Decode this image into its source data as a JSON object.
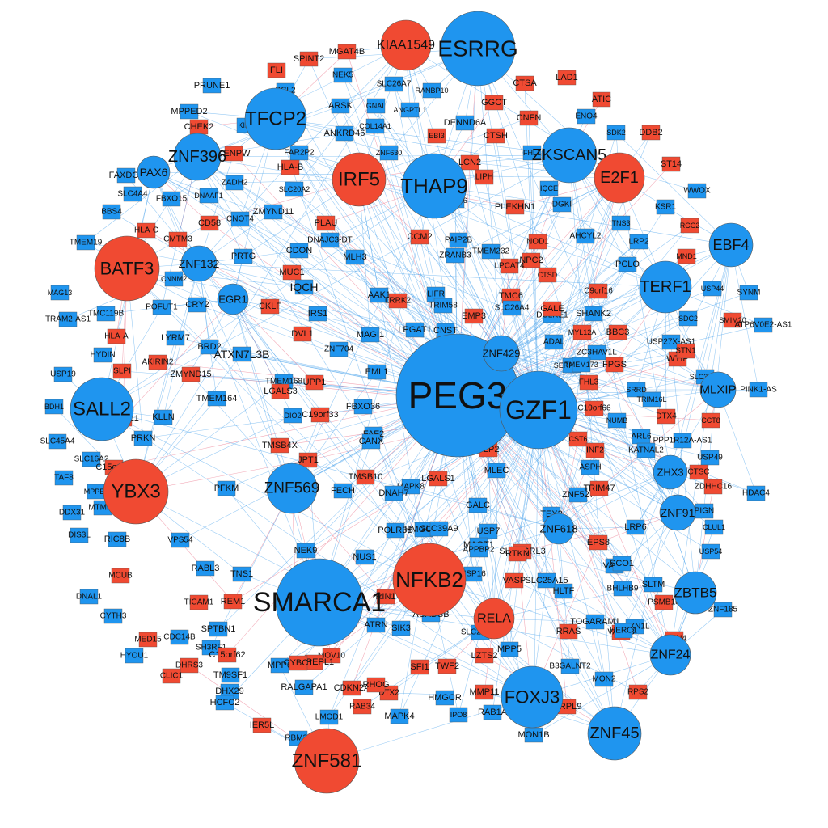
{
  "colors": {
    "tf_blue": "#1f95ef",
    "tf_red": "#f04a32",
    "edge_blue": "#3a9bea",
    "edge_red": "#e8607a",
    "node_stroke": "#555555",
    "arrow": "#8a6fb0"
  },
  "hubs": [
    {
      "label": "PEG3",
      "color": "blue"
    },
    {
      "label": "GZF1",
      "color": "blue"
    },
    {
      "label": "SMARCA1",
      "color": "blue"
    },
    {
      "label": "NFKB2",
      "color": "red"
    },
    {
      "label": "ESRRG",
      "color": "blue"
    },
    {
      "label": "THAP9",
      "color": "blue"
    },
    {
      "label": "IRF5",
      "color": "red"
    },
    {
      "label": "TFCP2",
      "color": "blue"
    },
    {
      "label": "ZNF396",
      "color": "blue"
    },
    {
      "label": "ZKSCAN5",
      "color": "blue"
    },
    {
      "label": "E2F1",
      "color": "red"
    },
    {
      "label": "BATF3",
      "color": "red"
    },
    {
      "label": "SALL2",
      "color": "blue"
    },
    {
      "label": "YBX3",
      "color": "red"
    },
    {
      "label": "ZNF581",
      "color": "red"
    },
    {
      "label": "FOXJ3",
      "color": "blue"
    },
    {
      "label": "ZNF45",
      "color": "blue"
    },
    {
      "label": "ZNF569",
      "color": "blue"
    },
    {
      "label": "TERF1",
      "color": "blue"
    },
    {
      "label": "EBF4",
      "color": "blue"
    },
    {
      "label": "MLXIP",
      "color": "blue"
    },
    {
      "label": "ZBTB5",
      "color": "blue"
    },
    {
      "label": "ZNF24",
      "color": "blue"
    },
    {
      "label": "ZNF91",
      "color": "blue"
    },
    {
      "label": "ZHX3",
      "color": "blue"
    },
    {
      "label": "RELA",
      "color": "red"
    },
    {
      "label": "KIAA1549",
      "color": "red"
    },
    {
      "label": "ZNF132",
      "color": "blue"
    },
    {
      "label": "PAX6",
      "color": "blue"
    },
    {
      "label": "EGR1",
      "color": "blue"
    },
    {
      "label": "ZNF618",
      "color": "blue"
    },
    {
      "label": "ZNF429",
      "color": "blue"
    }
  ],
  "genes": [
    {
      "label": "SPINT2",
      "color": "red"
    },
    {
      "label": "MGAT4B",
      "color": "red"
    },
    {
      "label": "FLI",
      "color": "red"
    },
    {
      "label": "TMEM135",
      "color": "blue"
    },
    {
      "label": "NEK5",
      "color": "blue"
    },
    {
      "label": "SLC26A7",
      "color": "blue"
    },
    {
      "label": "CTSA",
      "color": "red"
    },
    {
      "label": "LAD1",
      "color": "red"
    },
    {
      "label": "PRUNE1",
      "color": "blue"
    },
    {
      "label": "BCL2",
      "color": "blue"
    },
    {
      "label": "RANBP10",
      "color": "blue"
    },
    {
      "label": "GGCT",
      "color": "red"
    },
    {
      "label": "ATIC",
      "color": "red"
    },
    {
      "label": "MPPED2",
      "color": "blue"
    },
    {
      "label": "ARSK",
      "color": "blue"
    },
    {
      "label": "GNAL",
      "color": "blue"
    },
    {
      "label": "ANGPTL1",
      "color": "blue"
    },
    {
      "label": "CNFN",
      "color": "red"
    },
    {
      "label": "ENO4",
      "color": "blue"
    },
    {
      "label": "CHEK2",
      "color": "red"
    },
    {
      "label": "KIF6",
      "color": "blue"
    },
    {
      "label": "COL14A1",
      "color": "blue"
    },
    {
      "label": "DENND6A",
      "color": "blue"
    },
    {
      "label": "SDK2",
      "color": "blue"
    },
    {
      "label": "DDB2",
      "color": "red"
    },
    {
      "label": "ANKRD46",
      "color": "blue"
    },
    {
      "label": "EBI3",
      "color": "red"
    },
    {
      "label": "CTSH",
      "color": "red"
    },
    {
      "label": "FAR2P2",
      "color": "blue"
    },
    {
      "label": "ZNF630",
      "color": "blue"
    },
    {
      "label": "FHL1",
      "color": "blue"
    },
    {
      "label": "CENPW",
      "color": "red"
    },
    {
      "label": "HLA-B",
      "color": "red"
    },
    {
      "label": "LCN2",
      "color": "red"
    },
    {
      "label": "ST14",
      "color": "red"
    },
    {
      "label": "FAXDC2",
      "color": "blue"
    },
    {
      "label": "ZADH2",
      "color": "blue"
    },
    {
      "label": "LIPH",
      "color": "red"
    },
    {
      "label": "IQCE",
      "color": "blue"
    },
    {
      "label": "SLC4A4",
      "color": "blue"
    },
    {
      "label": "FBXO15",
      "color": "blue"
    },
    {
      "label": "DNAAF1",
      "color": "blue"
    },
    {
      "label": "SLC20A2",
      "color": "blue"
    },
    {
      "label": "LRRC6",
      "color": "blue"
    },
    {
      "label": "WWOX",
      "color": "blue"
    },
    {
      "label": "BBS4",
      "color": "blue"
    },
    {
      "label": "CD58",
      "color": "red"
    },
    {
      "label": "CNOT4",
      "color": "blue"
    },
    {
      "label": "ZMYND11",
      "color": "blue"
    },
    {
      "label": "PLAU",
      "color": "red"
    },
    {
      "label": "DGKI",
      "color": "blue"
    },
    {
      "label": "PLEKHN1",
      "color": "red"
    },
    {
      "label": "KSR1",
      "color": "blue"
    },
    {
      "label": "HLA-C",
      "color": "red"
    },
    {
      "label": "DNAJC3-DT",
      "color": "blue"
    },
    {
      "label": "PAIP2B",
      "color": "blue"
    },
    {
      "label": "NOD1",
      "color": "red"
    },
    {
      "label": "TNS3",
      "color": "blue"
    },
    {
      "label": "RCC2",
      "color": "red"
    },
    {
      "label": "TMEM19",
      "color": "blue"
    },
    {
      "label": "CMTM3",
      "color": "red"
    },
    {
      "label": "CCM2",
      "color": "red"
    },
    {
      "label": "TMEM232",
      "color": "blue"
    },
    {
      "label": "AHCYL2",
      "color": "blue"
    },
    {
      "label": "LRP2",
      "color": "blue"
    },
    {
      "label": "PRTG",
      "color": "blue"
    },
    {
      "label": "CDON",
      "color": "blue"
    },
    {
      "label": "MLH3",
      "color": "blue"
    },
    {
      "label": "ZRANB3",
      "color": "blue"
    },
    {
      "label": "NPC2",
      "color": "red"
    },
    {
      "label": "MND1",
      "color": "red"
    },
    {
      "label": "MUC1",
      "color": "red"
    },
    {
      "label": "LPCAT4",
      "color": "red"
    },
    {
      "label": "CTSD",
      "color": "red"
    },
    {
      "label": "PCLO",
      "color": "blue"
    },
    {
      "label": "MAG13",
      "color": "blue"
    },
    {
      "label": "CNNM2",
      "color": "blue"
    },
    {
      "label": "IQCH",
      "color": "blue"
    },
    {
      "label": "AAK1",
      "color": "blue"
    },
    {
      "label": "LIFR",
      "color": "blue"
    },
    {
      "label": "TMC6",
      "color": "red"
    },
    {
      "label": "C9orf16",
      "color": "red"
    },
    {
      "label": "USP44",
      "color": "blue"
    },
    {
      "label": "SYNM",
      "color": "blue"
    },
    {
      "label": "TRAM2-AS1",
      "color": "blue"
    },
    {
      "label": "POFUT1",
      "color": "blue"
    },
    {
      "label": "CRY2",
      "color": "blue"
    },
    {
      "label": "CKLF",
      "color": "red"
    },
    {
      "label": "LRRK2",
      "color": "red"
    },
    {
      "label": "SLC26A4",
      "color": "blue"
    },
    {
      "label": "SHANK2",
      "color": "blue"
    },
    {
      "label": "TMC119B",
      "color": "blue"
    },
    {
      "label": "IRS1",
      "color": "blue"
    },
    {
      "label": "TRIM58",
      "color": "blue"
    },
    {
      "label": "EMP3",
      "color": "red"
    },
    {
      "label": "DCLRE1",
      "color": "blue"
    },
    {
      "label": "GALE",
      "color": "red"
    },
    {
      "label": "SDC2",
      "color": "blue"
    },
    {
      "label": "SMIM20",
      "color": "red"
    },
    {
      "label": "LYRM7",
      "color": "blue"
    },
    {
      "label": "DVL1",
      "color": "red"
    },
    {
      "label": "MAGI1",
      "color": "blue"
    },
    {
      "label": "LPGAT1",
      "color": "blue"
    },
    {
      "label": "CNST",
      "color": "blue"
    },
    {
      "label": "ADAL",
      "color": "blue"
    },
    {
      "label": "MYL12A",
      "color": "red"
    },
    {
      "label": "BBC3",
      "color": "red"
    },
    {
      "label": "ATP6V0E2-AS1",
      "color": "blue"
    },
    {
      "label": "HLA-A",
      "color": "red"
    },
    {
      "label": "HYDIN",
      "color": "blue"
    },
    {
      "label": "BRD2",
      "color": "blue"
    },
    {
      "label": "ATXN7L3B",
      "color": "blue"
    },
    {
      "label": "ZNF704",
      "color": "blue"
    },
    {
      "label": "PARP12",
      "color": "red"
    },
    {
      "label": "ZC3HAV1L",
      "color": "blue"
    },
    {
      "label": "USP27X-AS1",
      "color": "blue"
    },
    {
      "label": "AKIRIN2",
      "color": "red"
    },
    {
      "label": "SLPI",
      "color": "red"
    },
    {
      "label": "ZMYND15",
      "color": "red"
    },
    {
      "label": "EML1",
      "color": "blue"
    },
    {
      "label": "SERPINA1",
      "color": "blue"
    },
    {
      "label": "FPGS",
      "color": "red"
    },
    {
      "label": "WTIP",
      "color": "red"
    },
    {
      "label": "USP19",
      "color": "blue"
    },
    {
      "label": "TMEM168",
      "color": "blue"
    },
    {
      "label": "UPP1",
      "color": "red"
    },
    {
      "label": "TMEM173",
      "color": "blue"
    },
    {
      "label": "STN1",
      "color": "red"
    },
    {
      "label": "SLC33A1",
      "color": "blue"
    },
    {
      "label": "BCL2L1",
      "color": "red"
    },
    {
      "label": "TMEM164",
      "color": "blue"
    },
    {
      "label": "LGALS3",
      "color": "red"
    },
    {
      "label": "FBXO36",
      "color": "blue"
    },
    {
      "label": "FHL3",
      "color": "red"
    },
    {
      "label": "SRRD",
      "color": "blue"
    },
    {
      "label": "PINK1-AS",
      "color": "blue"
    },
    {
      "label": "BDH1",
      "color": "blue"
    },
    {
      "label": "C19orf33",
      "color": "red"
    },
    {
      "label": "DIO2",
      "color": "blue"
    },
    {
      "label": "C19orf66",
      "color": "red"
    },
    {
      "label": "TRIM16L",
      "color": "blue"
    },
    {
      "label": "KLLN",
      "color": "blue"
    },
    {
      "label": "DTX4",
      "color": "red"
    },
    {
      "label": "NUMB",
      "color": "blue"
    },
    {
      "label": "CCT8",
      "color": "red"
    },
    {
      "label": "SLC45A4",
      "color": "blue"
    },
    {
      "label": "PRKN",
      "color": "blue"
    },
    {
      "label": "FAF2",
      "color": "blue"
    },
    {
      "label": "CANX",
      "color": "blue"
    },
    {
      "label": "CST6",
      "color": "red"
    },
    {
      "label": "ARL6",
      "color": "blue"
    },
    {
      "label": "KATNAL2",
      "color": "blue"
    },
    {
      "label": "PPP1R12A-AS1",
      "color": "blue"
    },
    {
      "label": "SLC16A2",
      "color": "blue"
    },
    {
      "label": "TMSB4X",
      "color": "red"
    },
    {
      "label": "JPT1",
      "color": "red"
    },
    {
      "label": "PLP2",
      "color": "red"
    },
    {
      "label": "INF2",
      "color": "red"
    },
    {
      "label": "ASPH",
      "color": "blue"
    },
    {
      "label": "USP49",
      "color": "blue"
    },
    {
      "label": "C15orf48",
      "color": "red"
    },
    {
      "label": "TMSB10",
      "color": "red"
    },
    {
      "label": "MAPK8",
      "color": "blue"
    },
    {
      "label": "MLEC",
      "color": "blue"
    },
    {
      "label": "CTSC",
      "color": "red"
    },
    {
      "label": "ZDHHC16",
      "color": "red"
    },
    {
      "label": "TAF8",
      "color": "blue"
    },
    {
      "label": "PFKM",
      "color": "blue"
    },
    {
      "label": "LGALS1",
      "color": "red"
    },
    {
      "label": "ZNF527",
      "color": "blue"
    },
    {
      "label": "TRIM47",
      "color": "red"
    },
    {
      "label": "HDAC4",
      "color": "blue"
    },
    {
      "label": "MPPE1",
      "color": "blue"
    },
    {
      "label": "MTMR4",
      "color": "blue"
    },
    {
      "label": "FECH",
      "color": "blue"
    },
    {
      "label": "DNAH7",
      "color": "blue"
    },
    {
      "label": "GALC",
      "color": "blue"
    },
    {
      "label": "TEX2",
      "color": "blue"
    },
    {
      "label": "PIGN",
      "color": "blue"
    },
    {
      "label": "DDX31",
      "color": "blue"
    },
    {
      "label": "HMGCS1",
      "color": "blue"
    },
    {
      "label": "USP7",
      "color": "blue"
    },
    {
      "label": "EPS8",
      "color": "red"
    },
    {
      "label": "CLUL1",
      "color": "blue"
    },
    {
      "label": "DIS3L",
      "color": "blue"
    },
    {
      "label": "RIC8B",
      "color": "blue"
    },
    {
      "label": "VPS54",
      "color": "blue"
    },
    {
      "label": "POLR3B",
      "color": "blue"
    },
    {
      "label": "SLC39A9",
      "color": "blue"
    },
    {
      "label": "MAGT1",
      "color": "blue"
    },
    {
      "label": "LRP6",
      "color": "blue"
    },
    {
      "label": "NEK9",
      "color": "blue"
    },
    {
      "label": "APPBP2",
      "color": "blue"
    },
    {
      "label": "SH3BGRL3",
      "color": "red"
    },
    {
      "label": "VAPB",
      "color": "blue"
    },
    {
      "label": "USP54",
      "color": "blue"
    },
    {
      "label": "MCUB",
      "color": "red"
    },
    {
      "label": "RABL3",
      "color": "blue"
    },
    {
      "label": "NUS1",
      "color": "blue"
    },
    {
      "label": "RTKN",
      "color": "red"
    },
    {
      "label": "SCO1",
      "color": "blue"
    },
    {
      "label": "TNS1",
      "color": "blue"
    },
    {
      "label": "USP16",
      "color": "blue"
    },
    {
      "label": "SLTM",
      "color": "blue"
    },
    {
      "label": "DNAL1",
      "color": "blue"
    },
    {
      "label": "TICAM1",
      "color": "red"
    },
    {
      "label": "RIN1",
      "color": "red"
    },
    {
      "label": "VASP",
      "color": "red"
    },
    {
      "label": "SLC25A15",
      "color": "blue"
    },
    {
      "label": "BHLHB9",
      "color": "blue"
    },
    {
      "label": "PSMB10",
      "color": "red"
    },
    {
      "label": "CYTH3",
      "color": "blue"
    },
    {
      "label": "REM1",
      "color": "red"
    },
    {
      "label": "PSPH",
      "color": "blue"
    },
    {
      "label": "HLTF",
      "color": "blue"
    },
    {
      "label": "TOGARAM1",
      "color": "blue"
    },
    {
      "label": "ZNF185",
      "color": "blue"
    },
    {
      "label": "MED15",
      "color": "red"
    },
    {
      "label": "SPTBN1",
      "color": "blue"
    },
    {
      "label": "SIK3",
      "color": "blue"
    },
    {
      "label": "ACADSB",
      "color": "blue"
    },
    {
      "label": "RRAS",
      "color": "red"
    },
    {
      "label": "ATXN1L",
      "color": "blue"
    },
    {
      "label": "CDC14B",
      "color": "blue"
    },
    {
      "label": "SH3RF1",
      "color": "blue"
    },
    {
      "label": "ATRN",
      "color": "blue"
    },
    {
      "label": "SLC22A23",
      "color": "blue"
    },
    {
      "label": "MPP5",
      "color": "blue"
    },
    {
      "label": "VAMP8",
      "color": "red"
    },
    {
      "label": "CNIH4",
      "color": "red"
    },
    {
      "label": "HYOU1",
      "color": "blue"
    },
    {
      "label": "DHRS3",
      "color": "red"
    },
    {
      "label": "C15orf62",
      "color": "red"
    },
    {
      "label": "MOV10",
      "color": "red"
    },
    {
      "label": "RNPEPL1",
      "color": "red"
    },
    {
      "label": "LZTS2",
      "color": "red"
    },
    {
      "label": "HERC1",
      "color": "blue"
    },
    {
      "label": "CLIC1",
      "color": "red"
    },
    {
      "label": "TM9SF1",
      "color": "blue"
    },
    {
      "label": "MPP6",
      "color": "blue"
    },
    {
      "label": "CYBC1",
      "color": "red"
    },
    {
      "label": "SFI1",
      "color": "red"
    },
    {
      "label": "TWF2",
      "color": "red"
    },
    {
      "label": "B3GALNT2",
      "color": "blue"
    },
    {
      "label": "MON2",
      "color": "blue"
    },
    {
      "label": "DHX29",
      "color": "blue"
    },
    {
      "label": "CDKN2A",
      "color": "red"
    },
    {
      "label": "DTX2",
      "color": "red"
    },
    {
      "label": "HMGCR",
      "color": "blue"
    },
    {
      "label": "MMP11",
      "color": "red"
    },
    {
      "label": "MRPL9",
      "color": "red"
    },
    {
      "label": "RPS2",
      "color": "red"
    },
    {
      "label": "HCFC2",
      "color": "blue"
    },
    {
      "label": "RALGAPA1",
      "color": "blue"
    },
    {
      "label": "RHOG",
      "color": "red"
    },
    {
      "label": "RAB34",
      "color": "red"
    },
    {
      "label": "IER5L",
      "color": "red"
    },
    {
      "label": "LMOD1",
      "color": "blue"
    },
    {
      "label": "MAPK4",
      "color": "blue"
    },
    {
      "label": "IPO8",
      "color": "blue"
    },
    {
      "label": "RAB1A",
      "color": "blue"
    },
    {
      "label": "MON1B",
      "color": "blue"
    },
    {
      "label": "RBM23",
      "color": "blue"
    }
  ]
}
